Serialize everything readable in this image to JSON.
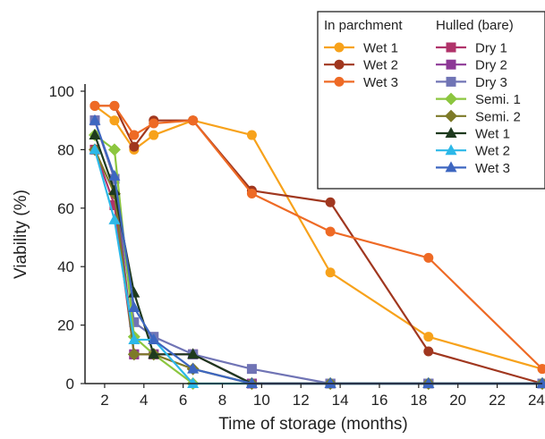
{
  "chart_data": {
    "type": "line",
    "title": "",
    "xlabel": "Time of storage (months)",
    "ylabel": "Viability (%)",
    "xlim": [
      1,
      24.3
    ],
    "ylim": [
      0,
      100
    ],
    "xticks": [
      2,
      4,
      6,
      8,
      10,
      12,
      14,
      16,
      18,
      20,
      22,
      24
    ],
    "yticks": [
      0,
      20,
      40,
      60,
      80,
      100
    ],
    "grid": false,
    "legend": {
      "placement": "top-right",
      "group_titles": [
        "In parchment",
        "Hulled  (bare)"
      ]
    },
    "series": [
      {
        "name": "Wet 1",
        "group": "In parchment",
        "marker": "circle",
        "color": "#F7A21B",
        "x": [
          1.5,
          2.5,
          3.5,
          4.5,
          6.5,
          9.5,
          13.5,
          18.5,
          24.3
        ],
        "y": [
          95,
          90,
          80,
          85,
          90,
          85,
          38,
          16,
          5
        ]
      },
      {
        "name": "Wet 2",
        "group": "In parchment",
        "marker": "circle",
        "color": "#A0371F",
        "x": [
          1.5,
          2.5,
          3.5,
          4.5,
          6.5,
          9.5,
          13.5,
          18.5,
          24.3
        ],
        "y": [
          95,
          95,
          81,
          90,
          90,
          66,
          62,
          11,
          0
        ]
      },
      {
        "name": "Wet 3",
        "group": "In parchment",
        "marker": "circle",
        "color": "#EE6A25",
        "x": [
          1.5,
          2.5,
          3.5,
          4.5,
          6.5,
          9.5,
          13.5,
          18.5,
          24.3
        ],
        "y": [
          95,
          95,
          85,
          89,
          90,
          65,
          52,
          43,
          5
        ]
      },
      {
        "name": "Dry 1",
        "group": "Hulled  (bare)",
        "marker": "square",
        "color": "#B0336A",
        "x": [
          1.5,
          2.5,
          3.5,
          4.5,
          6.5,
          9.5,
          13.5,
          18.5,
          24.3
        ],
        "y": [
          80,
          61,
          10,
          10,
          10,
          0,
          0,
          0,
          0
        ]
      },
      {
        "name": "Dry 2",
        "group": "Hulled  (bare)",
        "marker": "square",
        "color": "#8D3896",
        "x": [
          1.5,
          2.5,
          3.5,
          4.5,
          6.5,
          9.5,
          13.5,
          18.5,
          24.3
        ],
        "y": [
          90,
          70,
          10,
          10,
          10,
          0,
          0,
          0,
          0
        ]
      },
      {
        "name": "Dry 3",
        "group": "Hulled  (bare)",
        "marker": "square",
        "color": "#7074B5",
        "x": [
          1.5,
          2.5,
          3.5,
          4.5,
          6.5,
          9.5,
          13.5,
          18.5,
          24.3
        ],
        "y": [
          90,
          70,
          21,
          16,
          10,
          5,
          0,
          0,
          0
        ]
      },
      {
        "name": "Semi. 1",
        "group": "Hulled  (bare)",
        "marker": "diamond",
        "color": "#8CC63F",
        "x": [
          1.5,
          2.5,
          3.5,
          4.5,
          6.5,
          9.5,
          13.5,
          18.5,
          24.3
        ],
        "y": [
          85,
          80,
          16,
          10,
          0,
          0,
          0,
          0,
          0
        ]
      },
      {
        "name": "Semi. 2",
        "group": "Hulled  (bare)",
        "marker": "diamond",
        "color": "#7D7A28",
        "x": [
          1.5,
          2.5,
          3.5,
          4.5,
          6.5,
          9.5,
          13.5,
          18.5,
          24.3
        ],
        "y": [
          80,
          65,
          10,
          10,
          5,
          0,
          0,
          0,
          0
        ]
      },
      {
        "name": "Wet 1",
        "group": "Hulled  (bare)",
        "marker": "triangle",
        "color": "#1E3A1E",
        "x": [
          1.5,
          2.5,
          3.5,
          4.5,
          6.5,
          9.5,
          13.5,
          18.5,
          24.3
        ],
        "y": [
          85,
          66,
          31,
          10,
          10,
          0,
          0,
          0,
          0
        ]
      },
      {
        "name": "Wet 2",
        "group": "Hulled  (bare)",
        "marker": "triangle",
        "color": "#2CB8E8",
        "x": [
          1.5,
          2.5,
          3.5,
          4.5,
          6.5,
          9.5,
          13.5,
          18.5,
          24.3
        ],
        "y": [
          80,
          56,
          15,
          15,
          0,
          0,
          0,
          0,
          0
        ]
      },
      {
        "name": "Wet 3",
        "group": "Hulled  (bare)",
        "marker": "triangle",
        "color": "#3D66C0",
        "x": [
          1.5,
          2.5,
          3.5,
          4.5,
          6.5,
          9.5,
          13.5,
          18.5,
          24.3
        ],
        "y": [
          90,
          71,
          26,
          15,
          5,
          0,
          0,
          0,
          0
        ]
      }
    ]
  }
}
